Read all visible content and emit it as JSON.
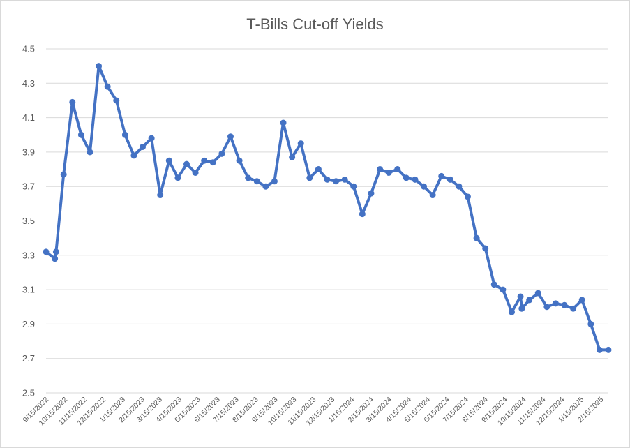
{
  "chart_data": {
    "type": "line",
    "title": "T-Bills Cut-off Yields",
    "xlabel": "",
    "ylabel": "",
    "ylim": [
      2.5,
      4.5
    ],
    "yticks": [
      2.5,
      2.7,
      2.9,
      3.1,
      3.3,
      3.5,
      3.7,
      3.9,
      4.1,
      4.3,
      4.5
    ],
    "grid": true,
    "legend": "none",
    "line_color": "#4472c4",
    "gridline_color": "#d9d9d9",
    "x_tick_labels": [
      "9/15/2022",
      "10/15/2022",
      "11/15/2022",
      "12/15/2022",
      "1/15/2023",
      "2/15/2023",
      "3/15/2023",
      "4/15/2023",
      "5/15/2023",
      "6/15/2023",
      "7/15/2023",
      "8/15/2023",
      "9/15/2023",
      "10/15/2023",
      "11/15/2023",
      "12/15/2023",
      "1/15/2024",
      "2/15/2024",
      "3/15/2024",
      "4/15/2024",
      "5/15/2024",
      "6/15/2024",
      "7/15/2024",
      "8/15/2024",
      "9/15/2024",
      "10/15/2024",
      "11/15/2024",
      "12/15/2024",
      "1/15/2025",
      "2/15/2025"
    ],
    "series": [
      {
        "x": [
          "2022-09-15",
          "2022-09-29",
          "2022-10-01",
          "2022-10-13",
          "2022-10-27",
          "2022-11-10",
          "2022-11-24",
          "2022-12-08",
          "2022-12-22",
          "2023-01-05",
          "2023-01-19",
          "2023-02-02",
          "2023-02-16",
          "2023-03-02",
          "2023-03-16",
          "2023-03-30",
          "2023-04-13",
          "2023-04-27",
          "2023-05-11",
          "2023-05-25",
          "2023-06-08",
          "2023-06-22",
          "2023-07-06",
          "2023-07-20",
          "2023-08-03",
          "2023-08-17",
          "2023-08-31",
          "2023-09-14",
          "2023-09-28",
          "2023-10-12",
          "2023-10-26",
          "2023-11-09",
          "2023-11-23",
          "2023-12-07",
          "2023-12-21",
          "2024-01-04",
          "2024-01-18",
          "2024-02-01",
          "2024-02-15",
          "2024-02-29",
          "2024-03-14",
          "2024-03-28",
          "2024-04-11",
          "2024-04-25",
          "2024-05-09",
          "2024-05-23",
          "2024-06-06",
          "2024-06-20",
          "2024-07-04",
          "2024-07-18",
          "2024-08-01",
          "2024-08-15",
          "2024-08-29",
          "2024-09-12",
          "2024-09-26",
          "2024-10-10",
          "2024-10-12",
          "2024-10-24",
          "2024-11-07",
          "2024-11-21",
          "2024-12-05",
          "2024-12-19",
          "2025-01-02",
          "2025-01-16",
          "2025-01-30",
          "2025-02-13",
          "2025-02-27"
        ],
        "values": [
          3.32,
          3.28,
          3.32,
          3.77,
          4.19,
          4.0,
          3.9,
          4.4,
          4.28,
          4.2,
          4.0,
          3.88,
          3.93,
          3.98,
          3.65,
          3.85,
          3.75,
          3.83,
          3.78,
          3.85,
          3.84,
          3.89,
          3.99,
          3.85,
          3.75,
          3.73,
          3.7,
          3.73,
          4.07,
          3.87,
          3.95,
          3.75,
          3.8,
          3.74,
          3.73,
          3.74,
          3.7,
          3.54,
          3.66,
          3.8,
          3.78,
          3.8,
          3.75,
          3.74,
          3.7,
          3.65,
          3.76,
          3.74,
          3.7,
          3.64,
          3.4,
          3.34,
          3.13,
          3.1,
          2.97,
          3.06,
          2.99,
          3.04,
          3.08,
          3.0,
          3.02,
          3.01,
          2.99,
          3.04,
          2.9,
          2.75,
          2.75
        ]
      }
    ]
  }
}
